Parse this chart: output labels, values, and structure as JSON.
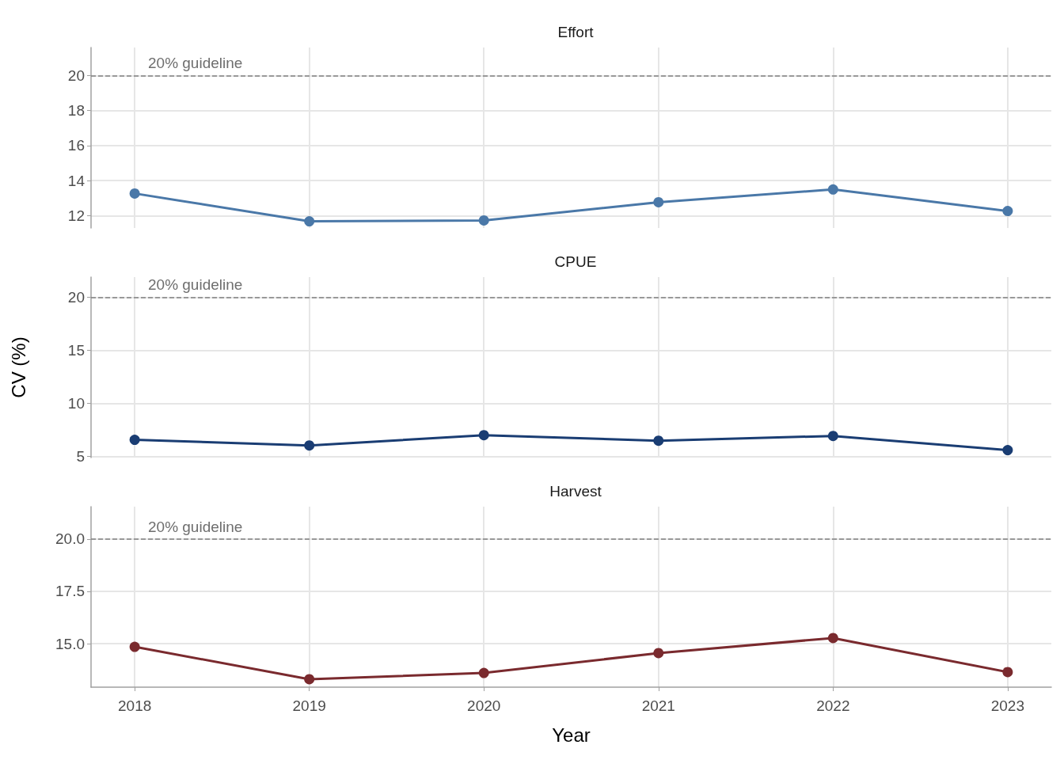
{
  "chart_data": [
    {
      "type": "line",
      "title": "Effort",
      "x": [
        2018,
        2019,
        2020,
        2021,
        2022,
        2023
      ],
      "series": [
        {
          "color": "#4a78a8",
          "values": [
            13.27,
            11.68,
            11.73,
            12.77,
            13.5,
            12.27
          ]
        }
      ],
      "xlim": [
        2017.75,
        2023.25
      ],
      "xticks": [
        2018,
        2019,
        2020,
        2021,
        2022,
        2023
      ],
      "ylim": [
        11.3,
        21.6
      ],
      "yticks": [
        12,
        14,
        16,
        18,
        20
      ],
      "ref_lines": [
        {
          "axis": "y",
          "value": 20,
          "label": "20% guideline",
          "color": "#808080",
          "line_style": "dashed"
        }
      ],
      "grid": true,
      "marker": "circle",
      "line_style": "solid",
      "tick_labels": "y"
    },
    {
      "type": "line",
      "title": "CPUE",
      "ylabel": "CV (%)",
      "x": [
        2018,
        2019,
        2020,
        2021,
        2022,
        2023
      ],
      "series": [
        {
          "color": "#1a3d73",
          "values": [
            6.57,
            6.04,
            7.01,
            6.49,
            6.94,
            5.6
          ]
        }
      ],
      "xlim": [
        2017.75,
        2023.25
      ],
      "xticks": [
        2018,
        2019,
        2020,
        2021,
        2022,
        2023
      ],
      "ylim": [
        4.9,
        21.9
      ],
      "yticks": [
        5,
        10,
        15,
        20
      ],
      "ref_lines": [
        {
          "axis": "y",
          "value": 20,
          "label": "20% guideline",
          "color": "#808080",
          "line_style": "dashed"
        }
      ],
      "grid": true,
      "marker": "circle",
      "line_style": "solid",
      "tick_labels": "y"
    },
    {
      "type": "line",
      "title": "Harvest",
      "xlabel": "Year",
      "x": [
        2018,
        2019,
        2020,
        2021,
        2022,
        2023
      ],
      "series": [
        {
          "color": "#7a2a2e",
          "values": [
            14.85,
            13.3,
            13.6,
            14.55,
            15.27,
            13.64
          ]
        }
      ],
      "xlim": [
        2017.75,
        2023.25
      ],
      "xticks": [
        2018,
        2019,
        2020,
        2021,
        2022,
        2023
      ],
      "ylim": [
        12.92,
        21.55
      ],
      "yticks": [
        {
          "value": 15,
          "label": "15.0"
        },
        {
          "value": 17.5,
          "label": "17.5"
        },
        {
          "value": 20,
          "label": "20.0"
        }
      ],
      "ref_lines": [
        {
          "axis": "y",
          "value": 20,
          "label": "20% guideline",
          "color": "#808080",
          "line_style": "dashed"
        }
      ],
      "grid": true,
      "marker": "circle",
      "line_style": "solid"
    }
  ]
}
